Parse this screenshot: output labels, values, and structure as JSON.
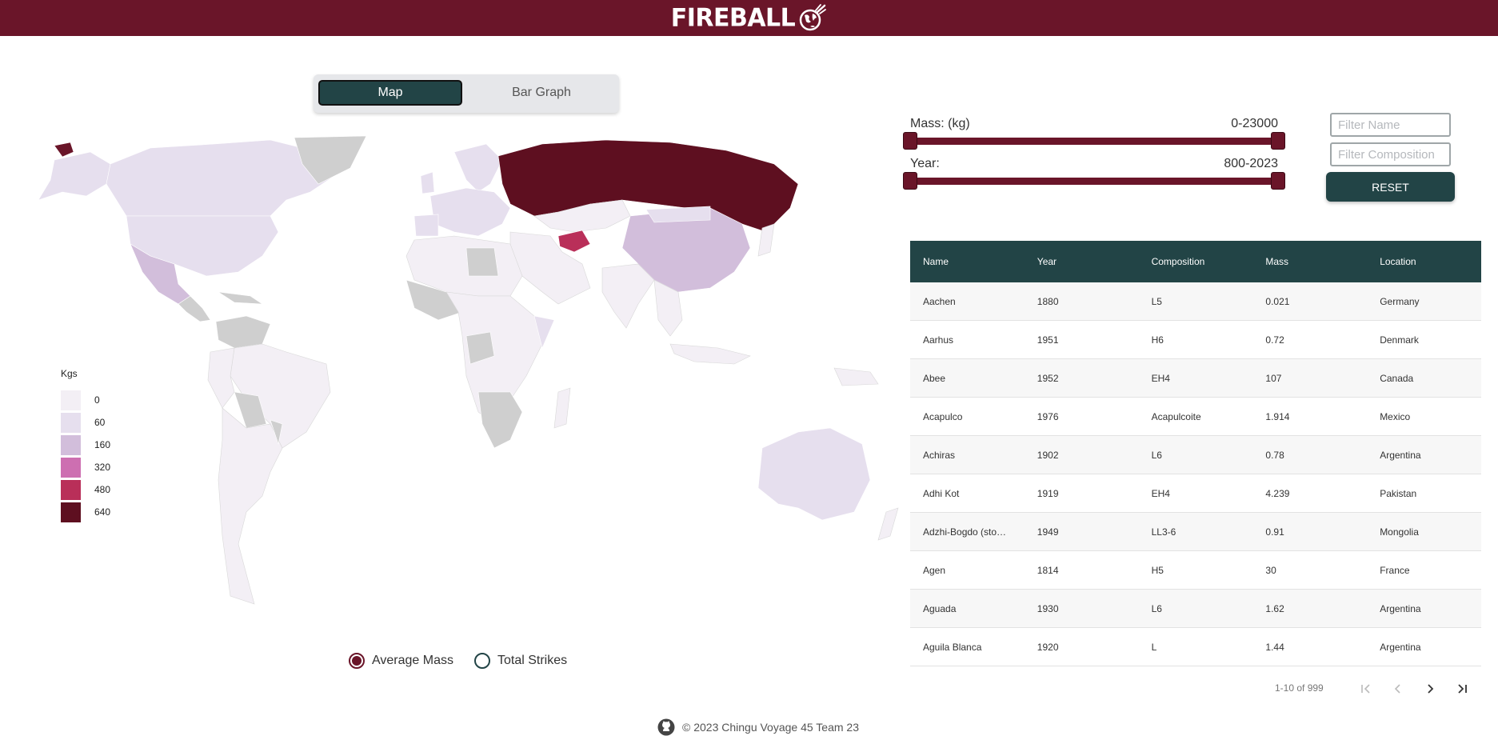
{
  "header": {
    "logo_text": "FIREBALL"
  },
  "view_toggle": {
    "map_label": "Map",
    "bar_label": "Bar Graph",
    "active": "map"
  },
  "legend": {
    "title": "Kgs",
    "items": [
      {
        "label": "0",
        "color": "#f3eff5"
      },
      {
        "label": "60",
        "color": "#e6dfee"
      },
      {
        "label": "160",
        "color": "#d2bedb"
      },
      {
        "label": "320",
        "color": "#cd6fb1"
      },
      {
        "label": "480",
        "color": "#b92f59"
      },
      {
        "label": "640",
        "color": "#5e0f20"
      }
    ]
  },
  "radios": {
    "average_mass_label": "Average Mass",
    "total_strikes_label": "Total Strikes",
    "selected": "average_mass"
  },
  "filters": {
    "mass_label": "Mass: (kg)",
    "mass_range": "0-23000",
    "year_label": "Year:",
    "year_range": "800-2023",
    "name_placeholder": "Filter Name",
    "composition_placeholder": "Filter Composition",
    "reset_label": "RESET"
  },
  "table": {
    "columns": [
      "Name",
      "Year",
      "Composition",
      "Mass",
      "Location"
    ],
    "rows": [
      [
        "Aachen",
        "1880",
        "L5",
        "0.021",
        "Germany"
      ],
      [
        "Aarhus",
        "1951",
        "H6",
        "0.72",
        "Denmark"
      ],
      [
        "Abee",
        "1952",
        "EH4",
        "107",
        "Canada"
      ],
      [
        "Acapulco",
        "1976",
        "Acapulcoite",
        "1.914",
        "Mexico"
      ],
      [
        "Achiras",
        "1902",
        "L6",
        "0.78",
        "Argentina"
      ],
      [
        "Adhi Kot",
        "1919",
        "EH4",
        "4.239",
        "Pakistan"
      ],
      [
        "Adzhi-Bogdo (sto…",
        "1949",
        "LL3-6",
        "0.91",
        "Mongolia"
      ],
      [
        "Agen",
        "1814",
        "H5",
        "30",
        "France"
      ],
      [
        "Aguada",
        "1930",
        "L6",
        "1.62",
        "Argentina"
      ],
      [
        "Aguila Blanca",
        "1920",
        "L",
        "1.44",
        "Argentina"
      ]
    ]
  },
  "pagination": {
    "info": "1-10 of 999"
  },
  "footer": {
    "text": "© 2023 Chingu Voyage 45 Team 23"
  },
  "colors": {
    "brand": "#6a1529",
    "accent": "#224446",
    "no_data": "#cfcfcf"
  }
}
